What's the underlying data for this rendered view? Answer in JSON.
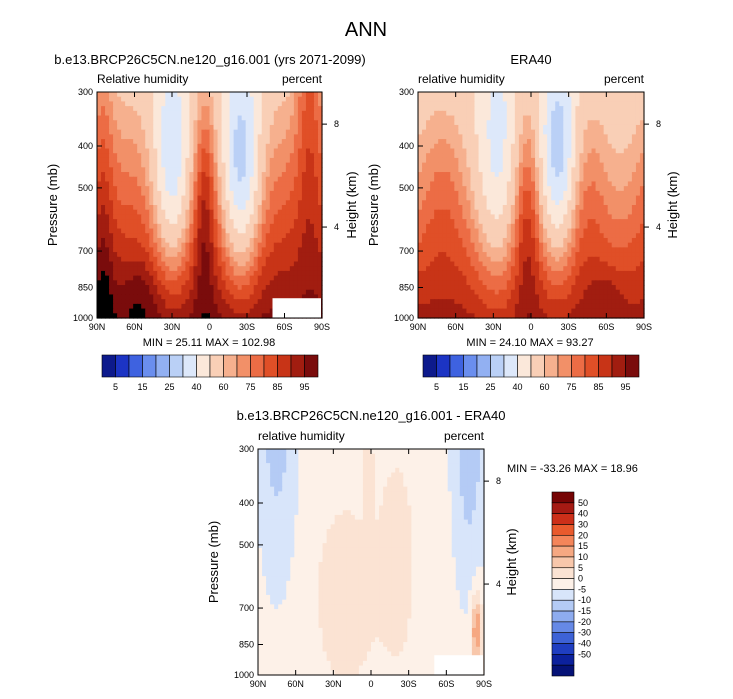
{
  "figure": {
    "title": "ANN"
  },
  "chart_data": [
    {
      "type": "heatmap",
      "title": "b.e13.BRCP26C5CN.ne120_g16.001 (yrs 2071-2099)",
      "left_label": "Relative humidity",
      "right_label": "percent",
      "ylabel": "Pressure (mb)",
      "y2label": "Height (km)",
      "x_ticks": [
        "90N",
        "60N",
        "30N",
        "0",
        "30S",
        "60S",
        "90S"
      ],
      "y_ticks": [
        "300",
        "400",
        "500",
        "700",
        "850",
        "1000"
      ],
      "y2_ticks": [
        "8",
        "4"
      ],
      "ylim": [
        1000,
        300
      ],
      "stats": "MIN = 25.11   MAX = 102.98",
      "colorbar": {
        "orientation": "horizontal",
        "labels": [
          "5",
          "15",
          "25",
          "40",
          "60",
          "75",
          "85",
          "95"
        ]
      },
      "field": "model_rh"
    },
    {
      "type": "heatmap",
      "title": "ERA40",
      "left_label": "relative humidity",
      "right_label": "percent",
      "ylabel": "Pressure (mb)",
      "y2label": "Height (km)",
      "x_ticks": [
        "90N",
        "60N",
        "30N",
        "0",
        "30S",
        "60S",
        "90S"
      ],
      "y_ticks": [
        "300",
        "400",
        "500",
        "700",
        "850",
        "1000"
      ],
      "y2_ticks": [
        "8",
        "4"
      ],
      "ylim": [
        1000,
        300
      ],
      "stats": "MIN = 24.10   MAX = 93.27",
      "colorbar": {
        "orientation": "horizontal",
        "labels": [
          "5",
          "15",
          "25",
          "40",
          "60",
          "75",
          "85",
          "95"
        ]
      },
      "field": "era40_rh"
    },
    {
      "type": "heatmap",
      "title": "b.e13.BRCP26C5CN.ne120_g16.001 - ERA40",
      "left_label": "relative humidity",
      "right_label": "percent",
      "ylabel": "Pressure (mb)",
      "y2label": "Height (km)",
      "x_ticks": [
        "90N",
        "60N",
        "30N",
        "0",
        "30S",
        "60S",
        "90S"
      ],
      "y_ticks": [
        "300",
        "400",
        "500",
        "700",
        "850",
        "1000"
      ],
      "y2_ticks": [
        "8",
        "4"
      ],
      "ylim": [
        1000,
        300
      ],
      "stats": "MIN = -33.26   MAX = 18.96",
      "colorbar": {
        "orientation": "vertical",
        "labels": [
          "50",
          "40",
          "30",
          "20",
          "15",
          "10",
          "5",
          "0",
          "-5",
          "-10",
          "-15",
          "-20",
          "-30",
          "-40",
          "-50"
        ]
      },
      "field": "difference"
    }
  ],
  "colors": {
    "rh_scale": [
      "#0d1a8c",
      "#1c34c4",
      "#3e62e0",
      "#6a8eee",
      "#92b0f2",
      "#bad0f6",
      "#dde8fa",
      "#fbe8da",
      "#f9cfb6",
      "#f6b08e",
      "#f29068",
      "#ec6c45",
      "#e04f27",
      "#c83417",
      "#a11d10",
      "#7a0c0c"
    ],
    "diff_scale": [
      "#760404",
      "#a51a13",
      "#cc2f19",
      "#e95a2d",
      "#f4855a",
      "#f6a882",
      "#f8c7ab",
      "#fbe3d3",
      "#fdf1e8",
      "#d8e5fa",
      "#b4cbf5",
      "#8eacef",
      "#6689e6",
      "#3d62d6",
      "#1f3ec1",
      "#0c219d",
      "#051277"
    ],
    "missing": "#ffffff"
  }
}
